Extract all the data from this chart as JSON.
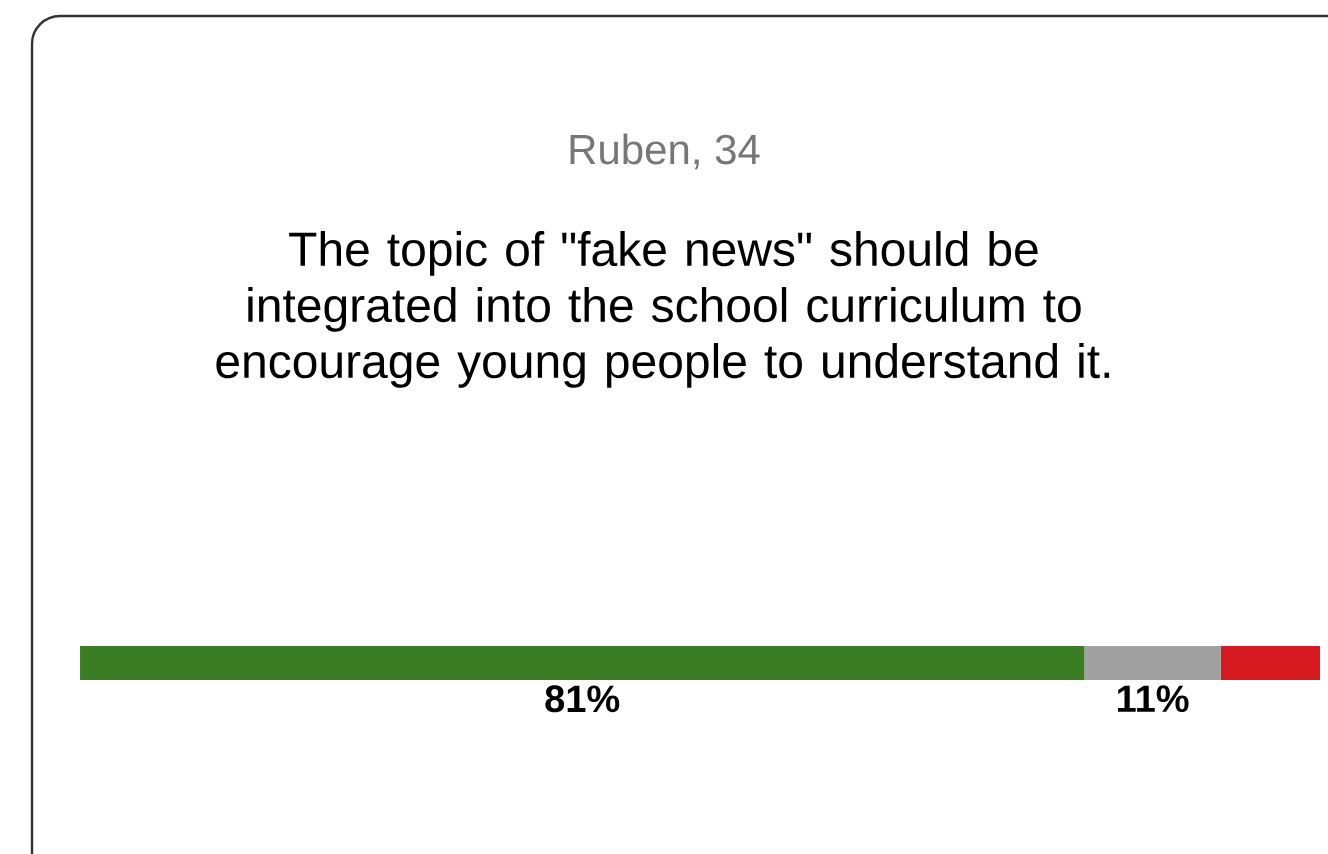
{
  "chart_data": {
    "type": "bar",
    "orientation": "horizontal",
    "stacked": true,
    "title": "Ruben, 34",
    "subtitle": "The topic of \"fake news\" should be integrated into the school curriculum to encourage young people to understand it.",
    "categories": [
      null
    ],
    "series": [
      {
        "color": "#3b7d23",
        "values": [
          81
        ],
        "value_labels": [
          "81%"
        ]
      },
      {
        "color": "#a0a0a0",
        "values": [
          11
        ],
        "value_labels": [
          "11%"
        ]
      },
      {
        "color": "#d71920",
        "values": [
          8
        ],
        "value_labels": [
          null
        ]
      }
    ]
  }
}
